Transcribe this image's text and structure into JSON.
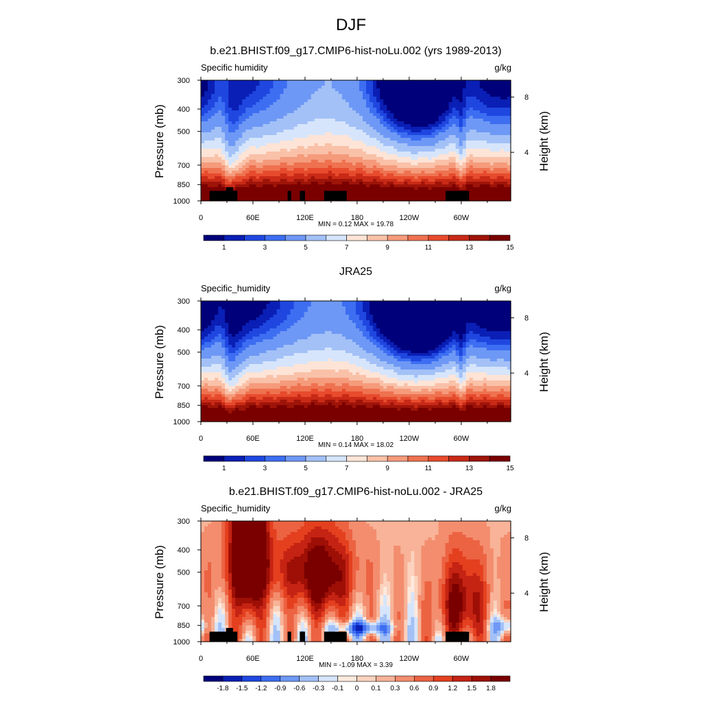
{
  "figure": {
    "title": "DJF"
  },
  "colors": {
    "abs_scale": [
      "#00007a",
      "#0a1fb5",
      "#1f47e0",
      "#3d6ef2",
      "#6e98f5",
      "#a3c1f7",
      "#d6e5fb",
      "#fde4d6",
      "#f9c1a8",
      "#f59b7c",
      "#ef7250",
      "#e74b2d",
      "#c82a17",
      "#9e1409",
      "#7a0000"
    ],
    "diff_scale": [
      "#00007a",
      "#0a1fb5",
      "#1f47e0",
      "#3d6ef2",
      "#6e98f5",
      "#a3c1f7",
      "#d6e5fb",
      "#fde9dd",
      "#fbd2bd",
      "#f8b398",
      "#f38d6e",
      "#ec6342",
      "#e4401f",
      "#c52313",
      "#9e0f06",
      "#7a0000"
    ],
    "land": "#000000"
  },
  "chart_data": [
    {
      "type": "heatmap",
      "title": "b.e21.BHIST.f09_g17.CMIP6-hist-noLu.002 (yrs 1989-2013)",
      "left_label": "Specific humidity",
      "right_label": "g/kg",
      "ylabel": "Pressure (mb)",
      "ylabel_right": "Height (km)",
      "x_ticks": [
        "0",
        "60E",
        "120E",
        "180",
        "120W",
        "60W"
      ],
      "x_tick_degrees": [
        0,
        60,
        120,
        180,
        240,
        300
      ],
      "x_range": [
        0,
        357
      ],
      "y_ticks": [
        "300",
        "400",
        "500",
        "700",
        "850",
        "1000"
      ],
      "y_tick_values": [
        300,
        400,
        500,
        700,
        850,
        1000
      ],
      "y_range": [
        300,
        1000
      ],
      "y_scale": "log",
      "height_ticks": [
        "8",
        "4"
      ],
      "height_tick_pressures": [
        355,
        616
      ],
      "stats": "MIN =   0.12  MAX =  19.78",
      "colorbar_labels": [
        "1",
        "3",
        "5",
        "7",
        "9",
        "11",
        "13",
        "15"
      ],
      "colorbar_label_boxes": [
        1,
        3,
        5,
        7,
        9,
        11,
        13,
        15
      ],
      "color_levels": [
        0.5,
        1,
        1.5,
        2,
        3,
        4,
        5,
        6,
        7,
        8,
        9,
        10,
        11,
        12,
        13,
        14,
        15
      ],
      "surface_blocks": [
        [
          10,
          42,
          905
        ],
        [
          29,
          37,
          872
        ],
        [
          100,
          104,
          905
        ],
        [
          114,
          120,
          905
        ],
        [
          142,
          168,
          905
        ],
        [
          282,
          309,
          905
        ]
      ]
    },
    {
      "type": "heatmap",
      "title": "JRA25",
      "left_label": "Specific_humidity",
      "right_label": "g/kg",
      "ylabel": "Pressure (mb)",
      "ylabel_right": "Height (km)",
      "x_ticks": [
        "0",
        "60E",
        "120E",
        "180",
        "120W",
        "60W"
      ],
      "x_tick_degrees": [
        0,
        60,
        120,
        180,
        240,
        300
      ],
      "x_range": [
        0,
        357
      ],
      "y_ticks": [
        "300",
        "400",
        "500",
        "700",
        "850",
        "1000"
      ],
      "y_tick_values": [
        300,
        400,
        500,
        700,
        850,
        1000
      ],
      "y_range": [
        300,
        1000
      ],
      "y_scale": "log",
      "height_ticks": [
        "8",
        "4"
      ],
      "height_tick_pressures": [
        355,
        616
      ],
      "stats": "MIN =   0.14  MAX =  18.02",
      "colorbar_labels": [
        "1",
        "3",
        "5",
        "7",
        "9",
        "11",
        "13",
        "15"
      ],
      "colorbar_label_boxes": [
        1,
        3,
        5,
        7,
        9,
        11,
        13,
        15
      ],
      "color_levels": [
        0.5,
        1,
        1.5,
        2,
        3,
        4,
        5,
        6,
        7,
        8,
        9,
        10,
        11,
        12,
        13,
        14,
        15
      ],
      "surface_blocks": []
    },
    {
      "type": "heatmap",
      "title": "b.e21.BHIST.f09_g17.CMIP6-hist-noLu.002 - JRA25",
      "left_label": "Specific_humidity",
      "right_label": "g/kg",
      "ylabel": "Pressure (mb)",
      "ylabel_right": "Height (km)",
      "x_ticks": [
        "0",
        "60E",
        "120E",
        "180",
        "120W",
        "60W"
      ],
      "x_tick_degrees": [
        0,
        60,
        120,
        180,
        240,
        300
      ],
      "x_range": [
        0,
        357
      ],
      "y_ticks": [
        "300",
        "400",
        "500",
        "700",
        "850",
        "1000"
      ],
      "y_tick_values": [
        300,
        400,
        500,
        700,
        850,
        1000
      ],
      "y_range": [
        300,
        1000
      ],
      "y_scale": "log",
      "height_ticks": [
        "8",
        "4"
      ],
      "height_tick_pressures": [
        355,
        616
      ],
      "stats": "MIN =  -1.09  MAX =   3.39",
      "colorbar_labels": [
        "-1.8",
        "-1.5",
        "-1.2",
        "-0.9",
        "-0.6",
        "-0.3",
        "-0.1",
        "0",
        "0.1",
        "0.3",
        "0.6",
        "0.9",
        "1.2",
        "1.5",
        "1.8"
      ],
      "colorbar_label_boxes": [
        1,
        2,
        3,
        4,
        5,
        6,
        7,
        8,
        9,
        10,
        11,
        12,
        13,
        14,
        15
      ],
      "color_levels": [
        -1.8,
        -1.5,
        -1.2,
        -0.9,
        -0.6,
        -0.3,
        -0.1,
        0,
        0.1,
        0.3,
        0.6,
        0.9,
        1.2,
        1.5,
        1.8
      ],
      "surface_blocks": [
        [
          10,
          42,
          905
        ],
        [
          29,
          37,
          872
        ],
        [
          100,
          104,
          905
        ],
        [
          114,
          120,
          905
        ],
        [
          142,
          168,
          905
        ],
        [
          282,
          309,
          905
        ]
      ]
    }
  ]
}
